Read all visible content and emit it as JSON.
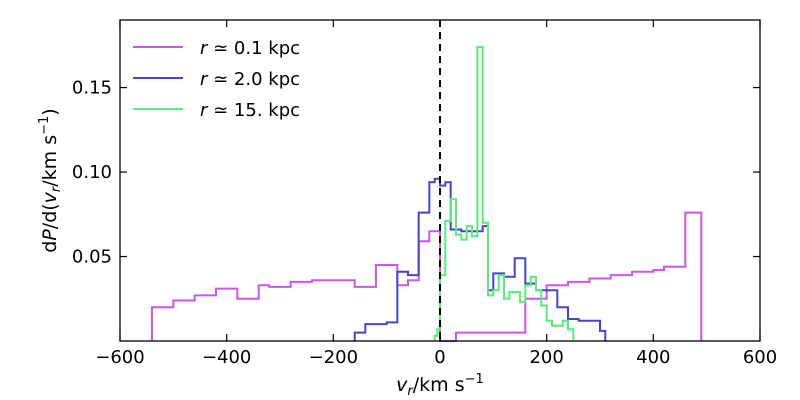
{
  "chart_data": {
    "type": "histogram-step",
    "title": "",
    "xlabel": "v_r/km s^-1",
    "ylabel": "dP/d(v_r/km s^-1)",
    "xlim": [
      -600,
      600
    ],
    "ylim": [
      0.0,
      0.19
    ],
    "xticks": [
      -600,
      -400,
      -200,
      0,
      200,
      400,
      600
    ],
    "xtick_labels": [
      "−600",
      "−400",
      "−200",
      "0",
      "200",
      "400",
      "600"
    ],
    "yticks": [
      0.05,
      0.1,
      0.15
    ],
    "ytick_labels": [
      "0.05",
      "0.10",
      "0.15"
    ],
    "vline": {
      "x": 0,
      "style": "dashed",
      "color": "#000000"
    },
    "legend": {
      "position": "top-left"
    },
    "series": [
      {
        "name": "r ≃ 0.1 kpc",
        "name_var": "r",
        "name_rest": "≃ 0.1 kpc",
        "color": "#cc55ee",
        "edges": [
          -540,
          -500,
          -460,
          -420,
          -380,
          -340,
          -320,
          -280,
          -240,
          -200,
          -160,
          -120,
          -80,
          -60,
          -40,
          -20,
          0,
          10,
          30,
          60,
          120,
          160,
          200,
          240,
          280,
          320,
          360,
          400,
          420,
          460,
          490
        ],
        "values": [
          0.02,
          0.024,
          0.027,
          0.031,
          0.025,
          0.033,
          0.032,
          0.035,
          0.036,
          0.036,
          0.032,
          0.045,
          0.033,
          0.036,
          0.059,
          0.065,
          0.0,
          0.0,
          0.005,
          0.005,
          0.005,
          0.025,
          0.033,
          0.035,
          0.037,
          0.039,
          0.041,
          0.042,
          0.044,
          0.076
        ]
      },
      {
        "name": "r ≃ 2.0 kpc",
        "name_var": "r",
        "name_rest": "≃ 2.0 kpc",
        "color": "#4444cc",
        "edges": [
          -160,
          -140,
          -120,
          -100,
          -80,
          -60,
          -40,
          -20,
          -10,
          0,
          10,
          20,
          40,
          60,
          80,
          90,
          100,
          120,
          140,
          160,
          180,
          200,
          220,
          240,
          260,
          280,
          300,
          310
        ],
        "values": [
          0.005,
          0.01,
          0.01,
          0.011,
          0.041,
          0.039,
          0.076,
          0.094,
          0.096,
          0.092,
          0.094,
          0.066,
          0.065,
          0.065,
          0.068,
          0.03,
          0.04,
          0.038,
          0.049,
          0.034,
          0.03,
          0.03,
          0.02,
          0.013,
          0.012,
          0.012,
          0.006
        ]
      },
      {
        "name": "r ≃ 15. kpc",
        "name_var": "r",
        "name_rest": "≃ 15. kpc",
        "color": "#55ee77",
        "edges": [
          -10,
          -5,
          0,
          10,
          20,
          30,
          40,
          50,
          60,
          70,
          80,
          90,
          100,
          110,
          120,
          130,
          140,
          150,
          160,
          170,
          180,
          190,
          200,
          210,
          220,
          230,
          240,
          250
        ],
        "values": [
          0.003,
          0.007,
          0.039,
          0.071,
          0.084,
          0.063,
          0.06,
          0.068,
          0.062,
          0.174,
          0.07,
          0.027,
          0.03,
          0.039,
          0.025,
          0.029,
          0.029,
          0.023,
          0.033,
          0.038,
          0.03,
          0.021,
          0.012,
          0.009,
          0.009,
          0.012,
          0.007
        ]
      }
    ]
  }
}
